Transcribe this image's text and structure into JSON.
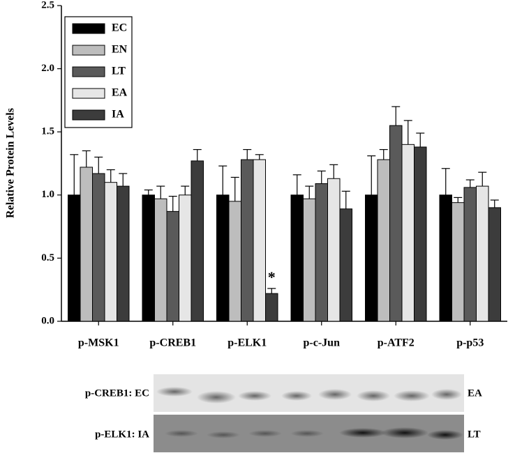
{
  "chart_data": {
    "type": "bar",
    "y_label": "Relative Protein Levels",
    "categories": [
      "p-MSK1",
      "p-CREB1",
      "p-ELK1",
      "p-c-Jun",
      "p-ATF2",
      "p-p53"
    ],
    "series": [
      {
        "name": "EC",
        "color": "#000000",
        "values": [
          1.0,
          1.0,
          1.0,
          1.0,
          1.0,
          1.0
        ],
        "errors": [
          0.32,
          0.04,
          0.23,
          0.16,
          0.31,
          0.21
        ]
      },
      {
        "name": "EN",
        "color": "#bdbdbd",
        "values": [
          1.22,
          0.97,
          0.95,
          0.97,
          1.28,
          0.94
        ],
        "errors": [
          0.13,
          0.1,
          0.19,
          0.1,
          0.08,
          0.04
        ]
      },
      {
        "name": "LT",
        "color": "#5a5a5a",
        "values": [
          1.17,
          0.87,
          1.28,
          1.09,
          1.55,
          1.06
        ],
        "errors": [
          0.13,
          0.12,
          0.08,
          0.1,
          0.15,
          0.06
        ]
      },
      {
        "name": "EA",
        "color": "#e6e6e6",
        "values": [
          1.1,
          1.0,
          1.28,
          1.13,
          1.4,
          1.07
        ],
        "errors": [
          0.1,
          0.07,
          0.04,
          0.11,
          0.19,
          0.11
        ]
      },
      {
        "name": "IA",
        "color": "#3c3c3c",
        "values": [
          1.07,
          1.27,
          0.22,
          0.89,
          1.38,
          0.9
        ],
        "errors": [
          0.1,
          0.09,
          0.04,
          0.14,
          0.11,
          0.06
        ]
      }
    ],
    "ylim": [
      0,
      2.5
    ],
    "yticks": [
      {
        "value": 0,
        "label": "0.0"
      },
      {
        "value": 0.5,
        "label": "0.5"
      },
      {
        "value": 1,
        "label": "1.0"
      },
      {
        "value": 1.5,
        "label": "1.5"
      },
      {
        "value": 2,
        "label": "2.0"
      },
      {
        "value": 2.5,
        "label": "2.5"
      }
    ],
    "legend": "upper left",
    "annotations": [
      {
        "text": "*",
        "category": "p-ELK1",
        "series": "IA"
      }
    ]
  },
  "blot": {
    "rows": [
      {
        "left": "p-CREB1: EC",
        "right": "EA"
      },
      {
        "left": "p-ELK1: IA",
        "right": "LT"
      }
    ]
  }
}
